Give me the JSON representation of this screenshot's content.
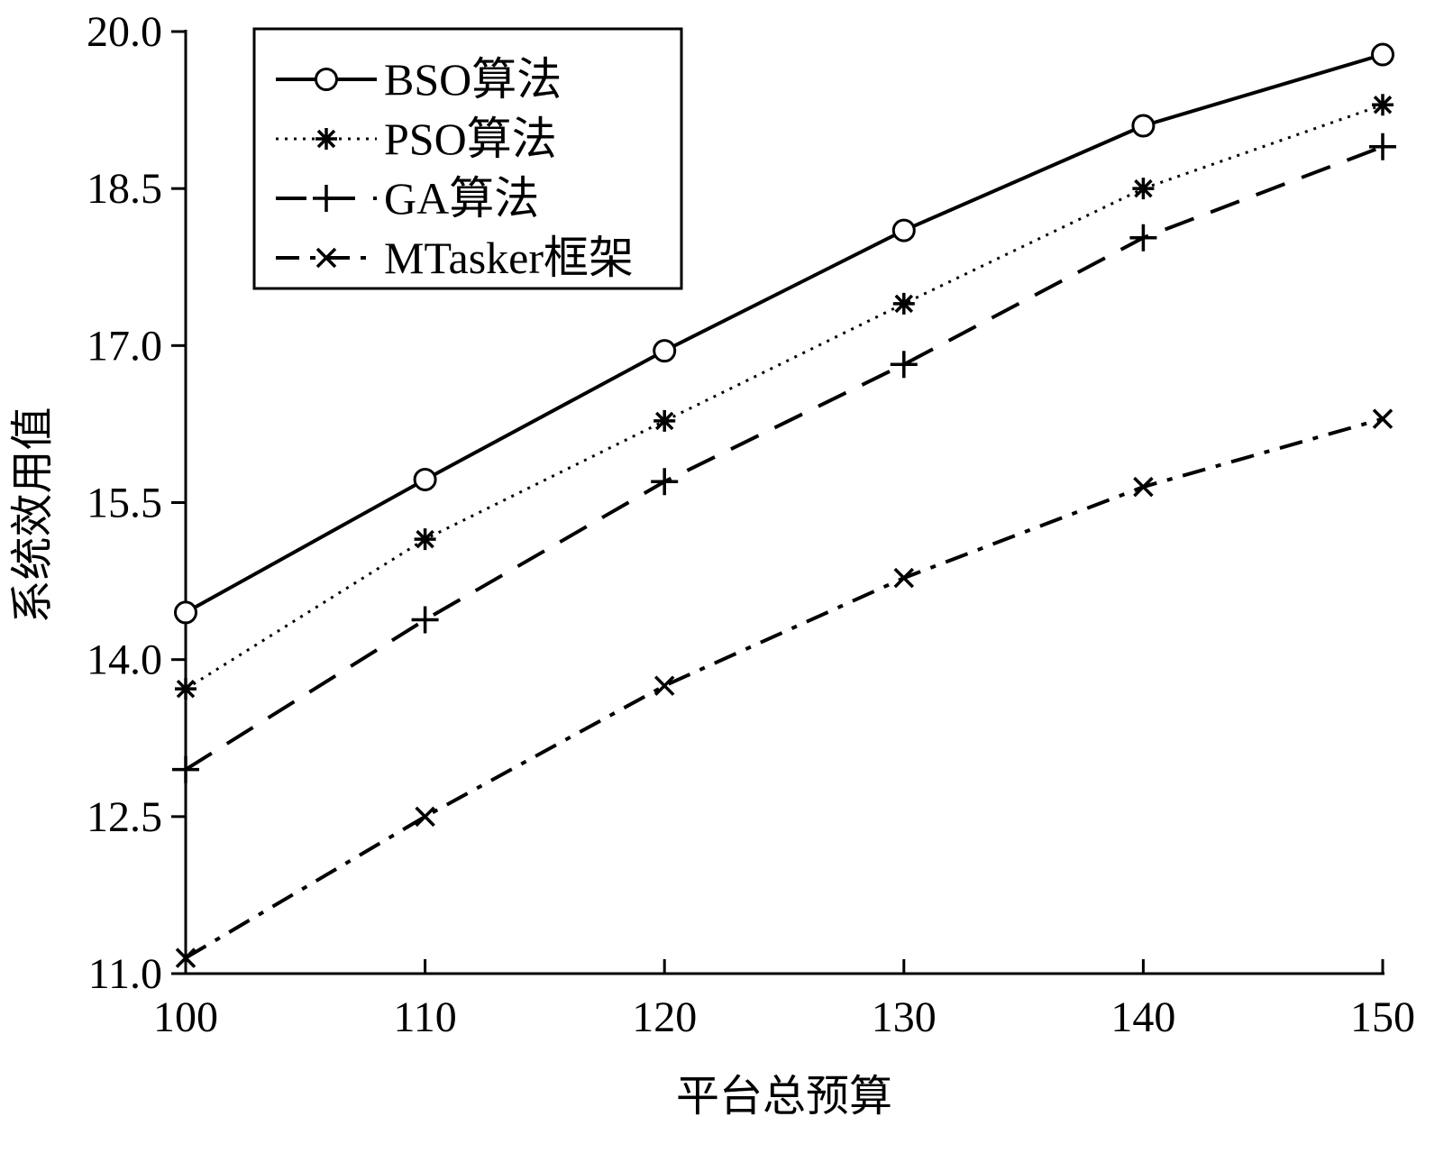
{
  "chart_data": {
    "type": "line",
    "title": "",
    "xlabel": "平台总预算",
    "ylabel": "系统效用值",
    "x": [
      100,
      110,
      120,
      130,
      140,
      150
    ],
    "xlim": [
      100,
      150
    ],
    "ylim": [
      11.0,
      20.0
    ],
    "xticks": [
      "100",
      "110",
      "120",
      "130",
      "140",
      "150"
    ],
    "yticks": [
      "11.0",
      "12.5",
      "14.0",
      "15.5",
      "17.0",
      "18.5",
      "20.0"
    ],
    "grid": false,
    "legend_position": "top-left",
    "series": [
      {
        "name": "BSO算法",
        "marker": "circle",
        "dash": "solid",
        "values": [
          14.45,
          15.72,
          16.95,
          18.1,
          19.1,
          19.78
        ]
      },
      {
        "name": "PSO算法",
        "marker": "star",
        "dash": "dotted",
        "values": [
          13.72,
          15.15,
          16.28,
          17.4,
          18.5,
          19.3
        ]
      },
      {
        "name": "GA算法",
        "marker": "plus",
        "dash": "dashed",
        "values": [
          12.95,
          14.38,
          15.7,
          16.82,
          18.03,
          18.9
        ]
      },
      {
        "name": "MTasker框架",
        "marker": "x",
        "dash": "dashdot",
        "values": [
          11.15,
          12.5,
          13.75,
          14.78,
          15.65,
          16.3
        ]
      }
    ]
  }
}
